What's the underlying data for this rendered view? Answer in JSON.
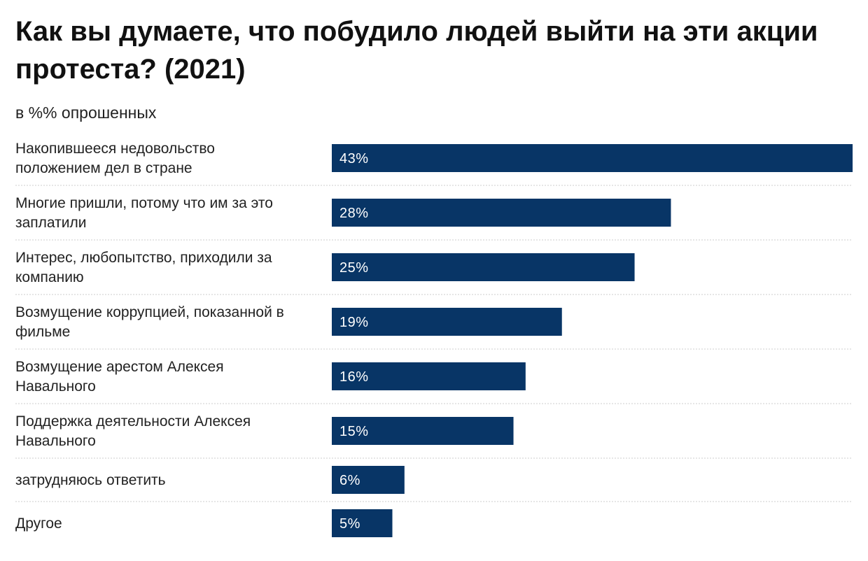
{
  "chart_data": {
    "type": "bar",
    "orientation": "horizontal",
    "title": "Как вы думаете, что побудило людей выйти на эти акции протеста? (2021)",
    "subtitle": "в %% опрошенных",
    "categories": [
      [
        "Накопившееся недовольство",
        "положением дел в стране"
      ],
      [
        "Многие пришли, потому что им за это",
        "заплатили"
      ],
      [
        "Интерес, любопытство, приходили за",
        "компанию"
      ],
      [
        "Возмущение коррупцией, показанной в",
        "фильме"
      ],
      [
        "Возмущение арестом Алексея",
        "Навального"
      ],
      [
        "Поддержка деятельности Алексея",
        "Навального"
      ],
      [
        "затрудняюсь ответить"
      ],
      [
        "Другое"
      ]
    ],
    "values": [
      43,
      28,
      25,
      19,
      16,
      15,
      6,
      5
    ],
    "value_labels": [
      "43%",
      "28%",
      "25%",
      "19%",
      "16%",
      "15%",
      "6%",
      "5%"
    ],
    "unit": "%",
    "xlim": [
      0,
      43
    ],
    "grid": false,
    "legend": "none",
    "colors": {
      "bar": "#083566",
      "bar_text": "#ffffff",
      "separator": "#cccccc",
      "text": "#222222"
    }
  }
}
